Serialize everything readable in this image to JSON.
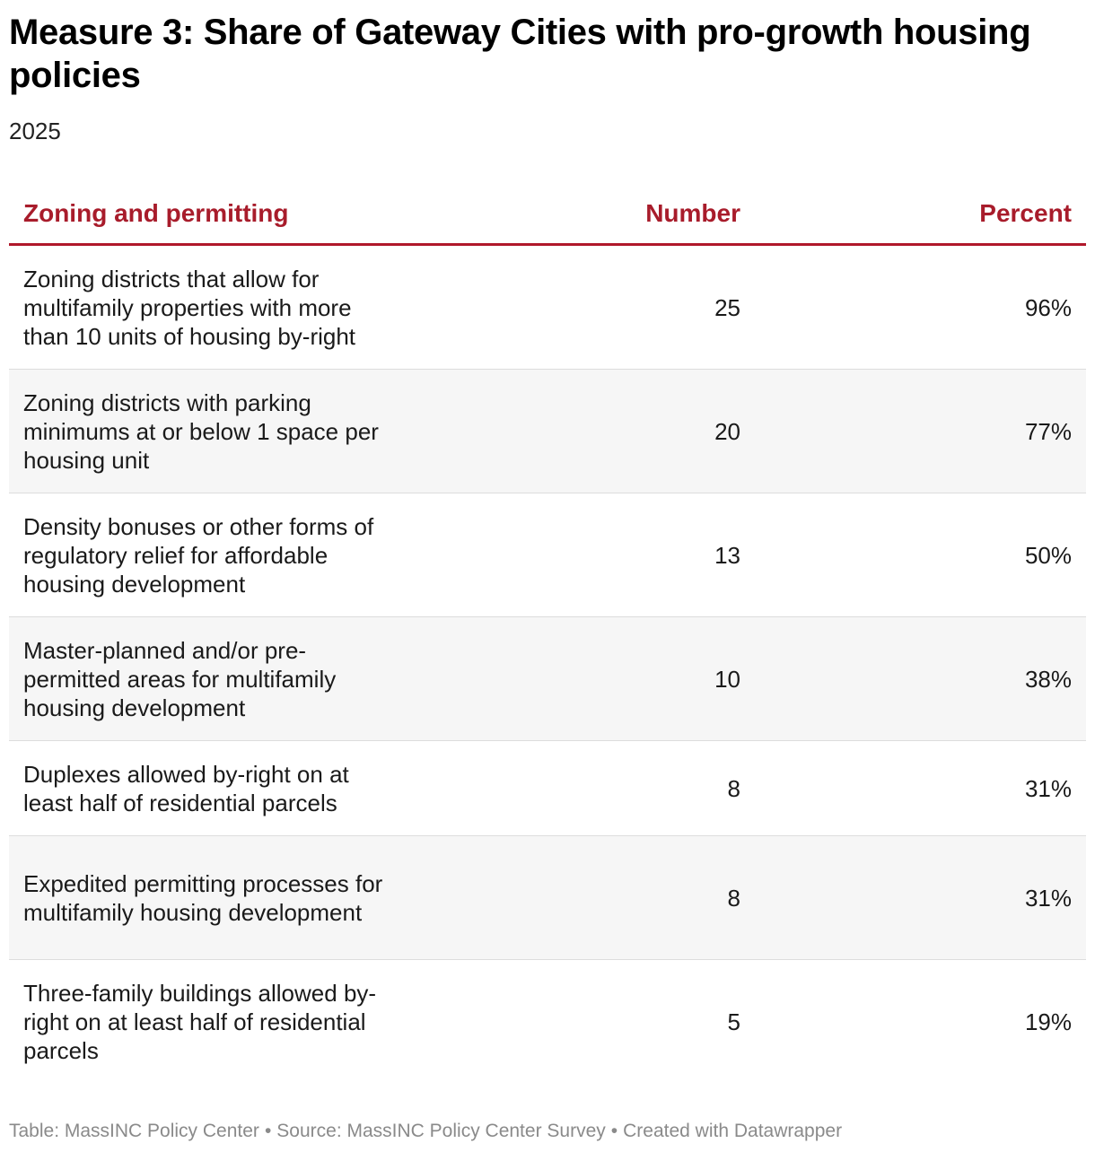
{
  "title": "Measure 3: Share of Gateway Cities with pro-growth housing policies",
  "subtitle": "2025",
  "chart_data": {
    "type": "table",
    "title": "Measure 3: Share of Gateway Cities with pro-growth housing policies",
    "subtitle": "2025",
    "columns": [
      "Zoning and permitting",
      "Number",
      "Percent"
    ],
    "rows": [
      {
        "label": "Zoning districts that allow for multifamily properties with more than 10 units of housing by-right",
        "number": "25",
        "percent": "96%"
      },
      {
        "label": "Zoning districts with parking minimums at or below 1 space per housing unit",
        "number": "20",
        "percent": "77%"
      },
      {
        "label": "Density bonuses or other forms of regulatory relief for affordable housing development",
        "number": "13",
        "percent": "50%"
      },
      {
        "label": "Master-planned and/or pre-permitted areas for multifamily housing development",
        "number": "10",
        "percent": "38%"
      },
      {
        "label": "Duplexes allowed by-right on at least half of residential parcels",
        "number": "8",
        "percent": "31%"
      },
      {
        "label": "Expedited permitting processes for multifamily housing development",
        "number": "8",
        "percent": "31%"
      },
      {
        "label": "Three-family buildings allowed by-right on at least half of residential parcels",
        "number": "5",
        "percent": "19%"
      }
    ]
  },
  "footer": {
    "table_credit": "Table: MassINC Policy Center",
    "source": "Source: MassINC Policy Center Survey",
    "created": "Created with Datawrapper",
    "separator": "•"
  },
  "colors": {
    "header_text": "#a81c2b",
    "header_rule": "#b0182a",
    "row_alt_bg": "#f6f6f6",
    "footer_text": "#8a8a8a"
  }
}
